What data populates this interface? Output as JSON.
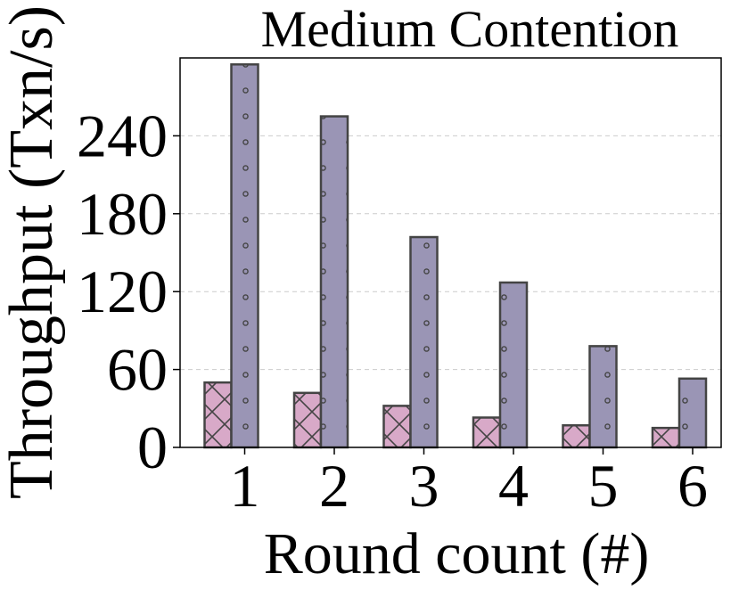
{
  "chart_data": {
    "type": "bar",
    "title": "Medium Contention",
    "xlabel": "Round count (#)",
    "ylabel": "Throughput (Txn/s)",
    "categories": [
      "1",
      "2",
      "3",
      "4",
      "5",
      "6"
    ],
    "yticks": [
      0,
      60,
      120,
      180,
      240
    ],
    "ylim": [
      0,
      300
    ],
    "grid": "horizontal dashed",
    "series": [
      {
        "values": [
          50,
          42,
          32,
          23,
          17,
          15
        ],
        "color": "#d8a9c8",
        "pattern": "crosshatch"
      },
      {
        "values": [
          295,
          255,
          162,
          127,
          78,
          53
        ],
        "color": "#9a95b5",
        "pattern": "dots"
      }
    ]
  }
}
